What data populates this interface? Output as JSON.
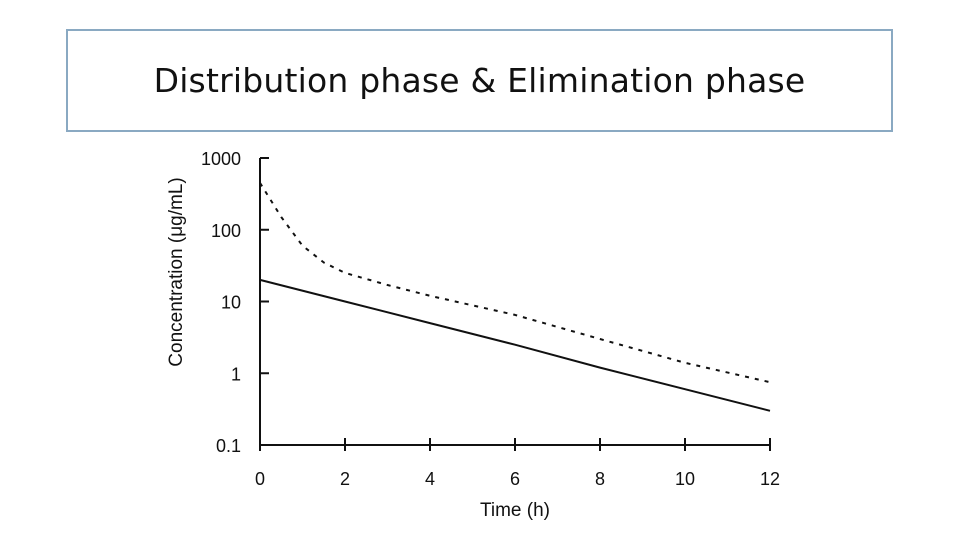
{
  "slide": {
    "title": "Distribution phase & Elimination phase"
  },
  "chart_data": {
    "type": "line",
    "xlabel": "Time (h)",
    "ylabel": "Concentration (μg/mL)",
    "xlim": [
      0,
      12
    ],
    "ylim": [
      0.1,
      1000
    ],
    "yscale": "log",
    "x_ticks": [
      "0",
      "2",
      "4",
      "6",
      "8",
      "10",
      "12"
    ],
    "y_ticks": [
      "0.1",
      "1",
      "10",
      "100",
      "1000"
    ],
    "grid": false,
    "series": [
      {
        "style": "dashed",
        "x": [
          0,
          0.5,
          1,
          1.5,
          2,
          3,
          4,
          6,
          8,
          10,
          12
        ],
        "y": [
          450,
          150,
          60,
          35,
          25,
          17,
          12,
          6.5,
          3,
          1.4,
          0.75
        ]
      },
      {
        "style": "solid",
        "x": [
          0,
          2,
          4,
          6,
          8,
          10,
          12
        ],
        "y": [
          20,
          10,
          5,
          2.5,
          1.2,
          0.6,
          0.3
        ]
      }
    ]
  }
}
